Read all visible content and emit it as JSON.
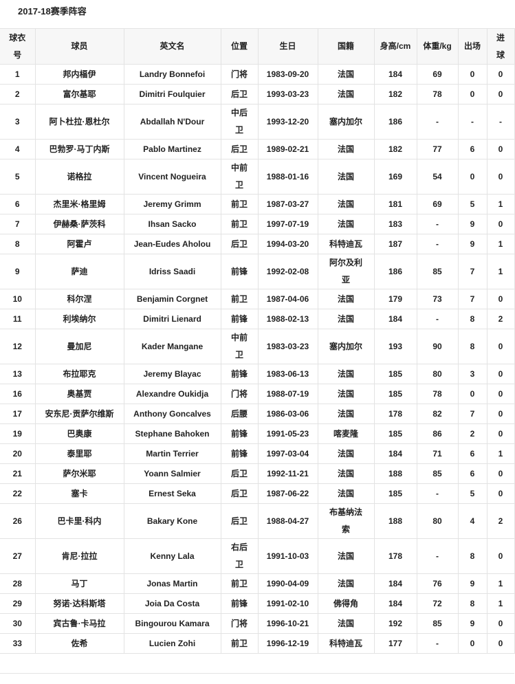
{
  "title": "2017-18赛季阵容",
  "headers": [
    "球衣号",
    "球员",
    "英文名",
    "位置",
    "生日",
    "国籍",
    "身高/cm",
    "体重/kg",
    "出场",
    "进球"
  ],
  "rows": [
    [
      "1",
      "邦内楅伊",
      "Landry Bonnefoi",
      "门将",
      "1983-09-20",
      "法国",
      "184",
      "69",
      "0",
      "0"
    ],
    [
      "2",
      "富尔基耶",
      "Dimitri Foulquier",
      "后卫",
      "1993-03-23",
      "法国",
      "182",
      "78",
      "0",
      "0"
    ],
    [
      "3",
      "阿卜杜拉·恩杜尔",
      "Abdallah N'Dour",
      "中后卫",
      "1993-12-20",
      "塞内加尔",
      "186",
      "-",
      "-",
      "-"
    ],
    [
      "4",
      "巴勃罗·马丁内斯",
      "Pablo Martinez",
      "后卫",
      "1989-02-21",
      "法国",
      "182",
      "77",
      "6",
      "0"
    ],
    [
      "5",
      "诺格拉",
      "Vincent Nogueira",
      "中前卫",
      "1988-01-16",
      "法国",
      "169",
      "54",
      "0",
      "0"
    ],
    [
      "6",
      "杰里米·格里姆",
      "Jeremy Grimm",
      "前卫",
      "1987-03-27",
      "法国",
      "181",
      "69",
      "5",
      "1"
    ],
    [
      "7",
      "伊赫桑·萨茨科",
      "Ihsan Sacko",
      "前卫",
      "1997-07-19",
      "法国",
      "183",
      "-",
      "9",
      "0"
    ],
    [
      "8",
      "阿霍卢",
      "Jean-Eudes Aholou",
      "后卫",
      "1994-03-20",
      "科特迪瓦",
      "187",
      "-",
      "9",
      "1"
    ],
    [
      "9",
      "萨迪",
      "Idriss Saadi",
      "前锋",
      "1992-02-08",
      "阿尔及利亚",
      "186",
      "85",
      "7",
      "1"
    ],
    [
      "10",
      "科尔涅",
      "Benjamin Corgnet",
      "前卫",
      "1987-04-06",
      "法国",
      "179",
      "73",
      "7",
      "0"
    ],
    [
      "11",
      "利埃纳尔",
      "Dimitri Lienard",
      "前锋",
      "1988-02-13",
      "法国",
      "184",
      "-",
      "8",
      "2"
    ],
    [
      "12",
      "曼加尼",
      "Kader Mangane",
      "中前卫",
      "1983-03-23",
      "塞内加尔",
      "193",
      "90",
      "8",
      "0"
    ],
    [
      "13",
      "布拉耶克",
      "Jeremy Blayac",
      "前锋",
      "1983-06-13",
      "法国",
      "185",
      "80",
      "3",
      "0"
    ],
    [
      "16",
      "奥基贾",
      "Alexandre Oukidja",
      "门将",
      "1988-07-19",
      "法国",
      "185",
      "78",
      "0",
      "0"
    ],
    [
      "17",
      "安东尼·贡萨尔维斯",
      "Anthony Goncalves",
      "后腰",
      "1986-03-06",
      "法国",
      "178",
      "82",
      "7",
      "0"
    ],
    [
      "19",
      "巴奥康",
      "Stephane Bahoken",
      "前锋",
      "1991-05-23",
      "喀麦隆",
      "185",
      "86",
      "2",
      "0"
    ],
    [
      "20",
      "泰里耶",
      "Martin Terrier",
      "前锋",
      "1997-03-04",
      "法国",
      "184",
      "71",
      "6",
      "1"
    ],
    [
      "21",
      "萨尔米耶",
      "Yoann Salmier",
      "后卫",
      "1992-11-21",
      "法国",
      "188",
      "85",
      "6",
      "0"
    ],
    [
      "22",
      "塞卡",
      "Ernest Seka",
      "后卫",
      "1987-06-22",
      "法国",
      "185",
      "-",
      "5",
      "0"
    ],
    [
      "26",
      "巴卡里·科内",
      "Bakary Kone",
      "后卫",
      "1988-04-27",
      "布基纳法索",
      "188",
      "80",
      "4",
      "2"
    ],
    [
      "27",
      "肯尼·拉拉",
      "Kenny Lala",
      "右后卫",
      "1991-10-03",
      "法国",
      "178",
      "-",
      "8",
      "0"
    ],
    [
      "28",
      "马丁",
      "Jonas Martin",
      "前卫",
      "1990-04-09",
      "法国",
      "184",
      "76",
      "9",
      "1"
    ],
    [
      "29",
      "努诺·达科斯塔",
      "Joia Da Costa",
      "前锋",
      "1991-02-10",
      "佛得角",
      "184",
      "72",
      "8",
      "1"
    ],
    [
      "30",
      "宾古鲁·卡马拉",
      "Bingourou Kamara",
      "门将",
      "1996-10-21",
      "法国",
      "192",
      "85",
      "9",
      "0"
    ],
    [
      "33",
      "佐希",
      "Lucien Zohi",
      "前卫",
      "1996-12-19",
      "科特迪瓦",
      "177",
      "-",
      "0",
      "0"
    ]
  ]
}
